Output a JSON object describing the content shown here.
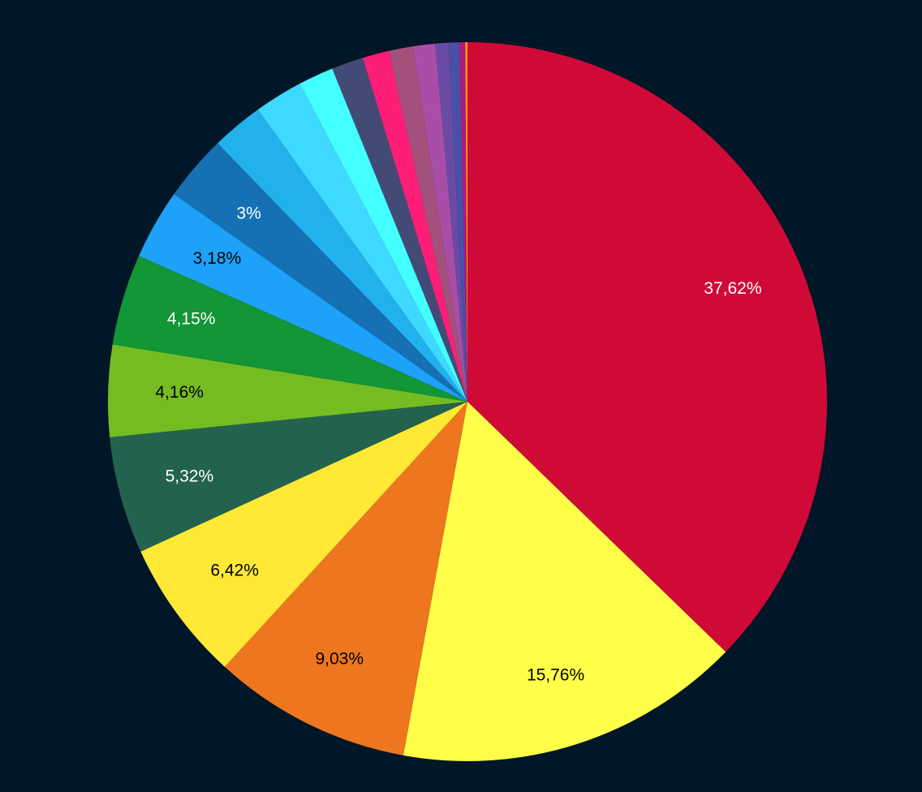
{
  "background_color": "#011627",
  "chart_data": {
    "type": "pie",
    "start_angle_deg": 0,
    "direction": "clockwise",
    "slices": [
      {
        "value": 37.62,
        "label": "37,62%",
        "color": "#cf0a37",
        "label_color": "#ffffff"
      },
      {
        "value": 15.76,
        "label": "15,76%",
        "color": "#ffff4a",
        "label_color": "#000000"
      },
      {
        "value": 9.03,
        "label": "9,03%",
        "color": "#ee761f",
        "label_color": "#000000"
      },
      {
        "value": 6.42,
        "label": "6,42%",
        "color": "#ffe935",
        "label_color": "#000000"
      },
      {
        "value": 5.32,
        "label": "5,32%",
        "color": "#23624f",
        "label_color": "#ffffff"
      },
      {
        "value": 4.16,
        "label": "4,16%",
        "color": "#75bc22",
        "label_color": "#000000"
      },
      {
        "value": 4.15,
        "label": "4,15%",
        "color": "#129636",
        "label_color": "#ffffff"
      },
      {
        "value": 3.18,
        "label": "3,18%",
        "color": "#1da1f9",
        "label_color": "#000000"
      },
      {
        "value": 3.0,
        "label": "3%",
        "color": "#1670b4",
        "label_color": "#ffffff"
      },
      {
        "value": 2.35,
        "label": "",
        "color": "#21b2ec",
        "label_color": "#000000"
      },
      {
        "value": 2.2,
        "label": "",
        "color": "#3fd8ff",
        "label_color": "#000000"
      },
      {
        "value": 1.6,
        "label": "",
        "color": "#44ffff",
        "label_color": "#000000"
      },
      {
        "value": 1.45,
        "label": "",
        "color": "#444a76",
        "label_color": "#ffffff"
      },
      {
        "value": 1.2,
        "label": "",
        "color": "#fd1f77",
        "label_color": "#ffffff"
      },
      {
        "value": 1.1,
        "label": "",
        "color": "#a3517c",
        "label_color": "#ffffff"
      },
      {
        "value": 1.0,
        "label": "",
        "color": "#a84ea8",
        "label_color": "#ffffff"
      },
      {
        "value": 0.6,
        "label": "",
        "color": "#6a4ba4",
        "label_color": "#ffffff"
      },
      {
        "value": 0.5,
        "label": "",
        "color": "#4a4fa8",
        "label_color": "#ffffff"
      },
      {
        "value": 0.25,
        "label": "",
        "color": "#b3177a",
        "label_color": "#ffffff"
      },
      {
        "value": 0.1,
        "label": "",
        "color": "#f59b12",
        "label_color": "#000000"
      }
    ]
  }
}
